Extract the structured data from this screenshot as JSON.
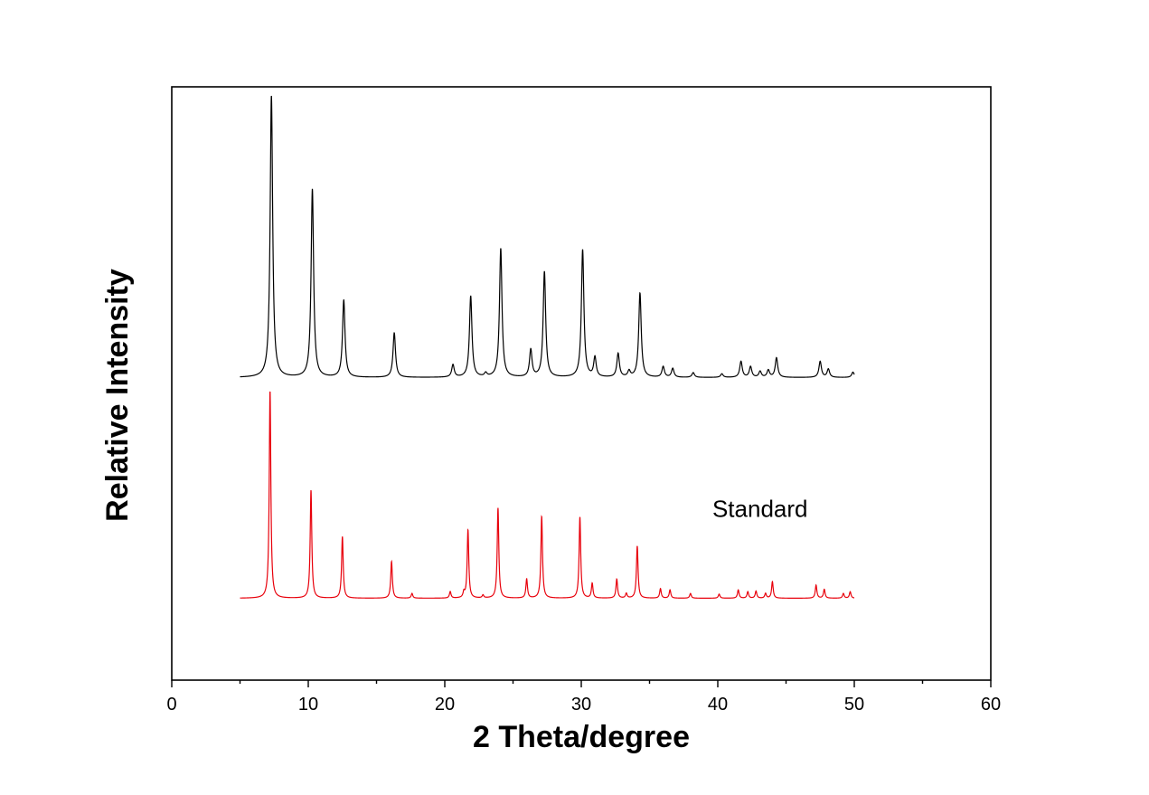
{
  "chart_data": {
    "type": "line",
    "title": "",
    "xlabel": "2 Theta/degree",
    "ylabel": "Relative Intensity",
    "xlim": [
      0,
      60
    ],
    "x_ticks": [
      0,
      10,
      20,
      30,
      40,
      50,
      60
    ],
    "x_tick_labels": [
      "0",
      "10",
      "20",
      "30",
      "40",
      "50",
      "60"
    ],
    "ylim": [
      0,
      1
    ],
    "y_ticks_shown": false,
    "grid": false,
    "legend": "none",
    "annotations": [
      {
        "text": "Standard",
        "x": 39.6,
        "y": 0.275
      }
    ],
    "series": [
      {
        "color": "#000000",
        "x_range": [
          5,
          50
        ],
        "baseline": 0.51,
        "peak_width": 0.11,
        "peaks": [
          {
            "x": 7.3,
            "y": 0.985
          },
          {
            "x": 10.3,
            "y": 0.827
          },
          {
            "x": 12.6,
            "y": 0.64
          },
          {
            "x": 16.3,
            "y": 0.585
          },
          {
            "x": 20.6,
            "y": 0.531
          },
          {
            "x": 21.9,
            "y": 0.647
          },
          {
            "x": 23.0,
            "y": 0.516
          },
          {
            "x": 24.1,
            "y": 0.727
          },
          {
            "x": 26.3,
            "y": 0.556
          },
          {
            "x": 27.3,
            "y": 0.688
          },
          {
            "x": 30.1,
            "y": 0.725
          },
          {
            "x": 31.0,
            "y": 0.543
          },
          {
            "x": 32.7,
            "y": 0.55
          },
          {
            "x": 33.5,
            "y": 0.52
          },
          {
            "x": 34.3,
            "y": 0.652
          },
          {
            "x": 36.0,
            "y": 0.528
          },
          {
            "x": 36.7,
            "y": 0.525
          },
          {
            "x": 38.2,
            "y": 0.518
          },
          {
            "x": 40.3,
            "y": 0.516
          },
          {
            "x": 41.7,
            "y": 0.537
          },
          {
            "x": 42.4,
            "y": 0.528
          },
          {
            "x": 43.1,
            "y": 0.52
          },
          {
            "x": 43.7,
            "y": 0.522
          },
          {
            "x": 44.3,
            "y": 0.543
          },
          {
            "x": 47.5,
            "y": 0.537
          },
          {
            "x": 48.1,
            "y": 0.524
          },
          {
            "x": 49.9,
            "y": 0.519
          }
        ]
      },
      {
        "color": "#e8000b",
        "x_range": [
          5,
          50
        ],
        "baseline": 0.138,
        "peak_width": 0.07,
        "peaks": [
          {
            "x": 7.2,
            "y": 0.488
          },
          {
            "x": 10.2,
            "y": 0.32
          },
          {
            "x": 12.5,
            "y": 0.242
          },
          {
            "x": 16.1,
            "y": 0.2
          },
          {
            "x": 17.6,
            "y": 0.146
          },
          {
            "x": 20.4,
            "y": 0.149
          },
          {
            "x": 21.4,
            "y": 0.147
          },
          {
            "x": 21.7,
            "y": 0.253
          },
          {
            "x": 22.8,
            "y": 0.143
          },
          {
            "x": 23.9,
            "y": 0.29
          },
          {
            "x": 26.0,
            "y": 0.17
          },
          {
            "x": 27.1,
            "y": 0.276
          },
          {
            "x": 29.9,
            "y": 0.275
          },
          {
            "x": 30.8,
            "y": 0.163
          },
          {
            "x": 32.6,
            "y": 0.17
          },
          {
            "x": 33.3,
            "y": 0.146
          },
          {
            "x": 34.1,
            "y": 0.226
          },
          {
            "x": 35.8,
            "y": 0.154
          },
          {
            "x": 36.5,
            "y": 0.152
          },
          {
            "x": 38.0,
            "y": 0.146
          },
          {
            "x": 40.1,
            "y": 0.145
          },
          {
            "x": 41.5,
            "y": 0.152
          },
          {
            "x": 42.2,
            "y": 0.149
          },
          {
            "x": 42.8,
            "y": 0.15
          },
          {
            "x": 43.5,
            "y": 0.146
          },
          {
            "x": 44.0,
            "y": 0.166
          },
          {
            "x": 47.2,
            "y": 0.16
          },
          {
            "x": 47.8,
            "y": 0.153
          },
          {
            "x": 49.2,
            "y": 0.146
          },
          {
            "x": 49.7,
            "y": 0.149
          }
        ]
      }
    ]
  }
}
